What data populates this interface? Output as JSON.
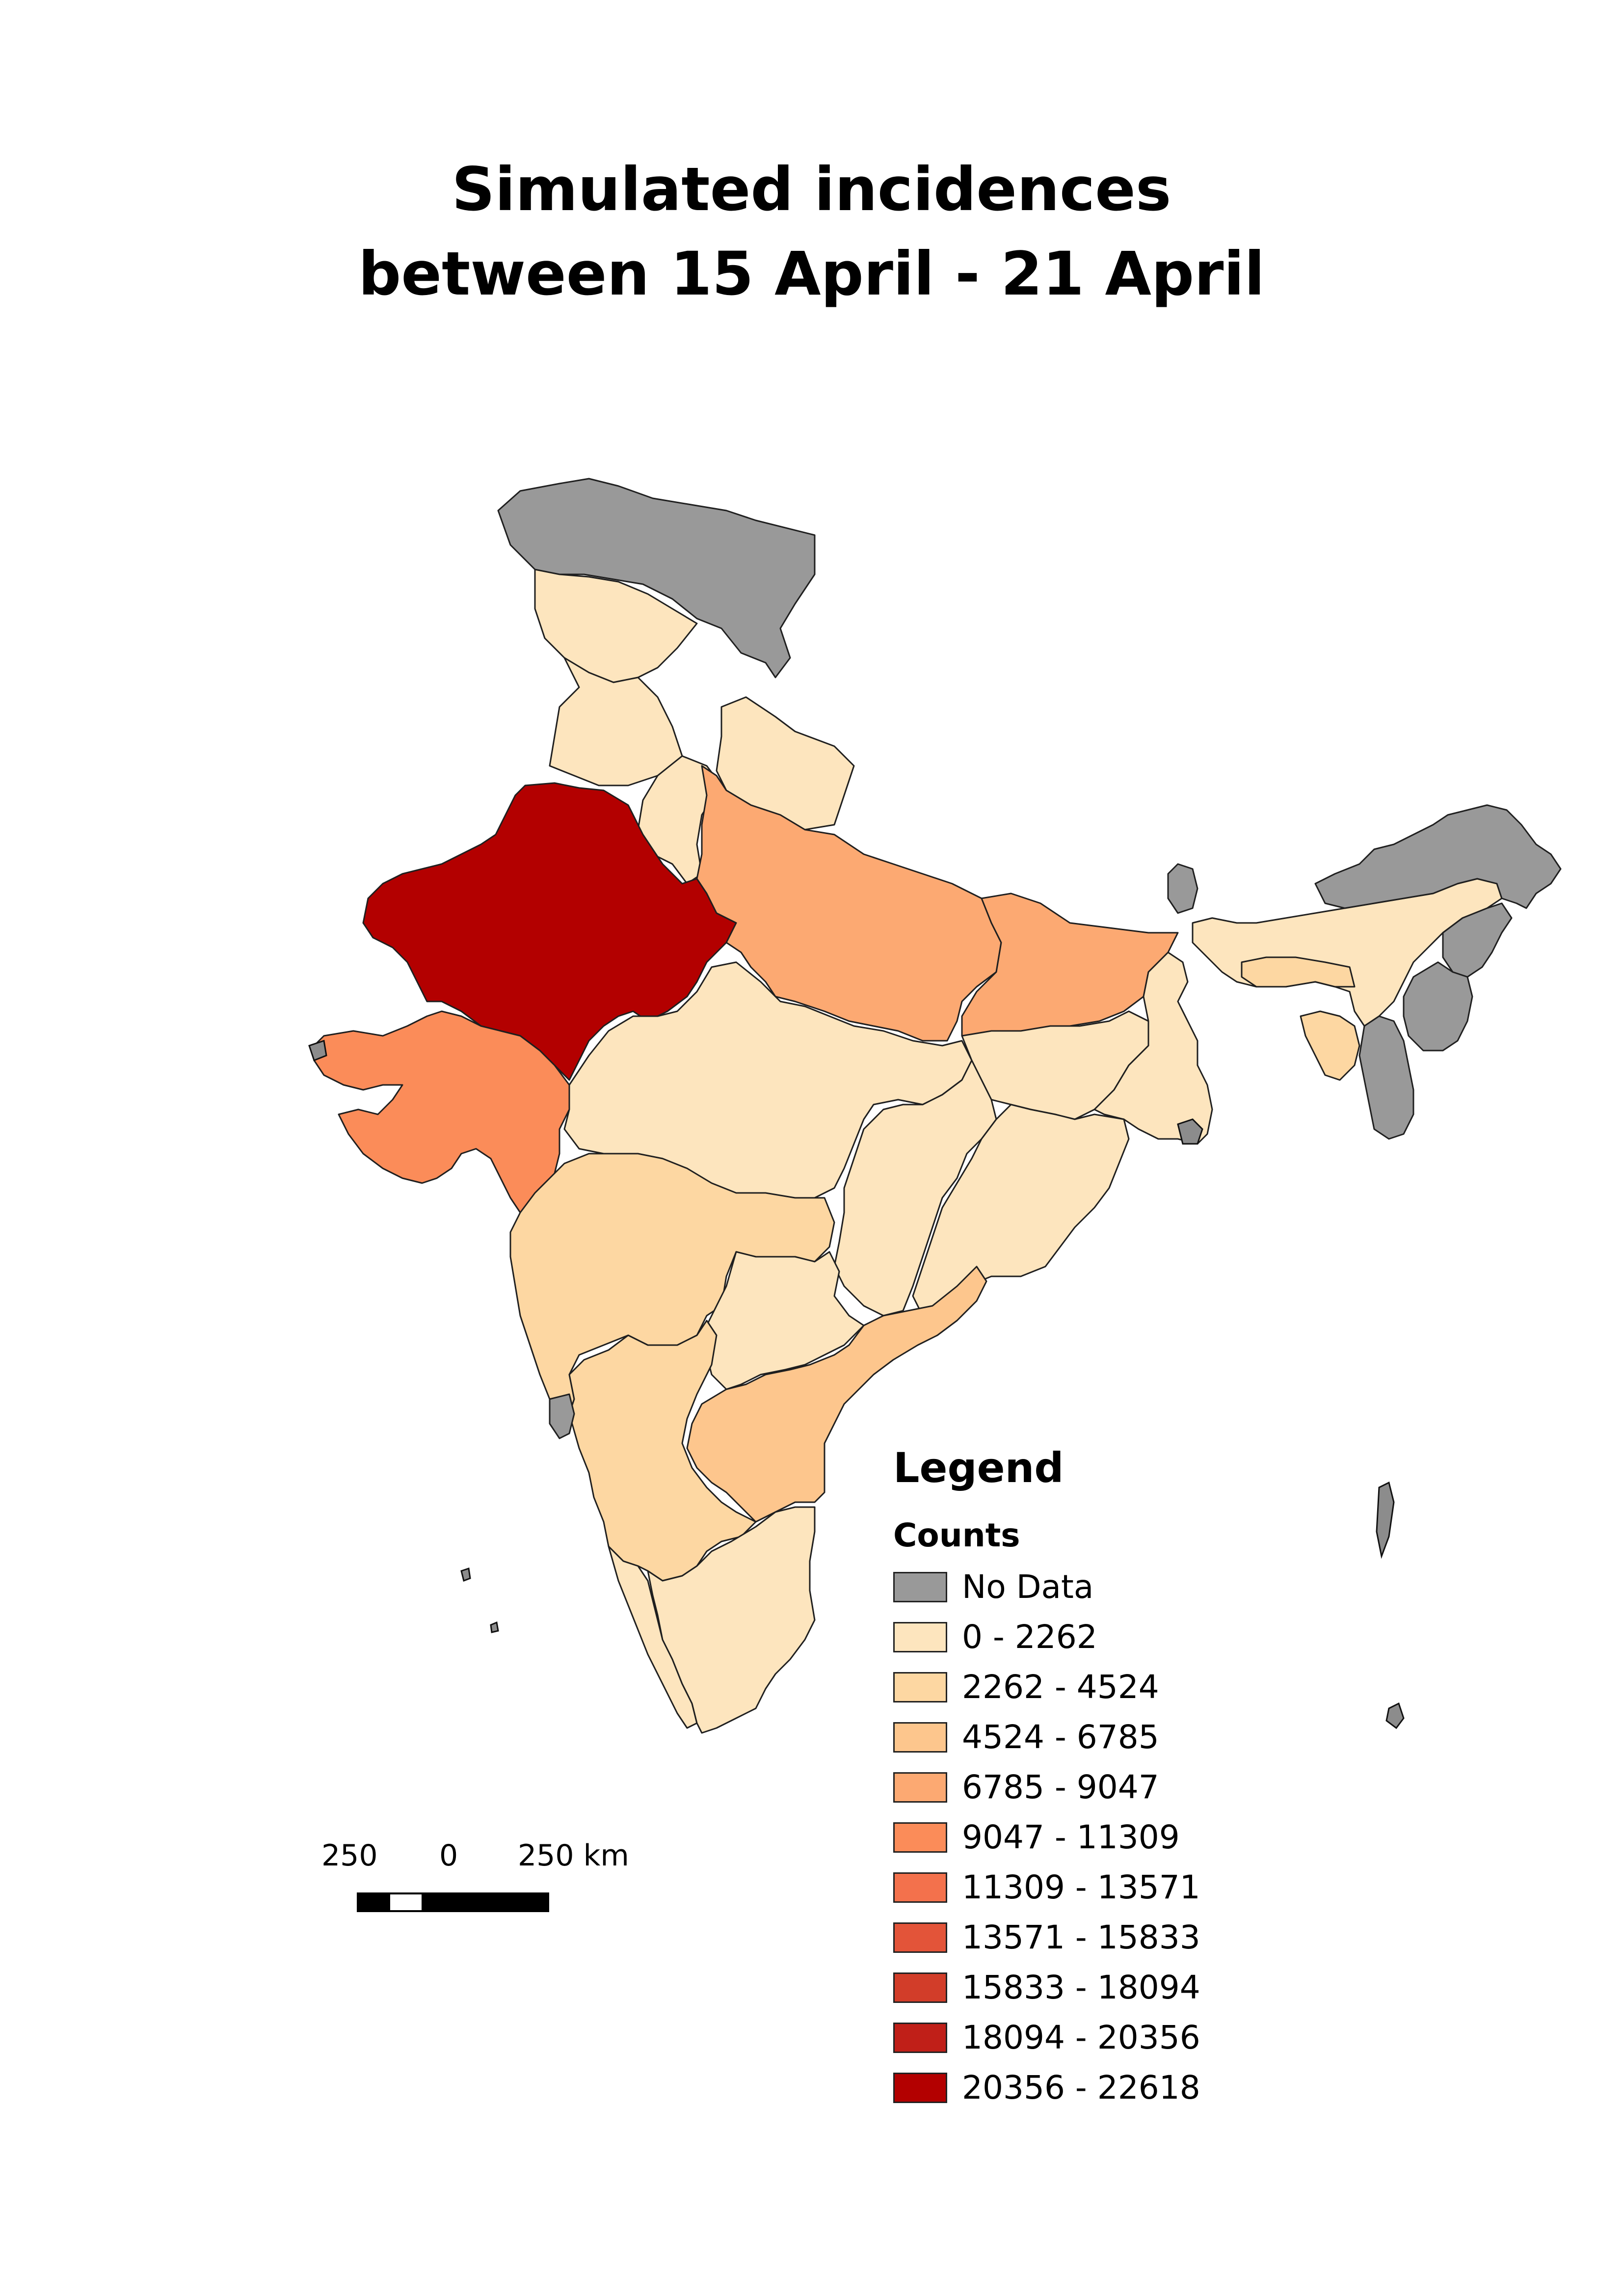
{
  "title": {
    "line1": "Simulated incidences",
    "line2": "between 15 April - 21 April"
  },
  "legend": {
    "title": "Legend",
    "subtitle": "Counts",
    "classes": [
      {
        "label": "No Data",
        "color": "#999999"
      },
      {
        "label": "0 - 2262",
        "color": "#fde5be"
      },
      {
        "label": "2262 - 4524",
        "color": "#fdd7a2"
      },
      {
        "label": "4524 - 6785",
        "color": "#fdc68d"
      },
      {
        "label": "6785 - 9047",
        "color": "#fca972"
      },
      {
        "label": "9047 - 11309",
        "color": "#fb8c59"
      },
      {
        "label": "11309 - 13571",
        "color": "#f3714c"
      },
      {
        "label": "13571 - 15833",
        "color": "#e35439"
      },
      {
        "label": "15833 - 18094",
        "color": "#d23d29"
      },
      {
        "label": "18094 - 20356",
        "color": "#c01f18"
      },
      {
        "label": "20356 - 22618",
        "color": "#b30000"
      }
    ]
  },
  "scalebar": {
    "left_label": "250",
    "mid_label": "0",
    "right_label": "250 km",
    "segment_colors": [
      "#000000",
      "#ffffff",
      "#000000",
      "#000000"
    ]
  },
  "map_regions": [
    {
      "name": "jammu-kashmir",
      "class": "No Data"
    },
    {
      "name": "himachal-pradesh",
      "class": "0 - 2262"
    },
    {
      "name": "punjab",
      "class": "0 - 2262"
    },
    {
      "name": "uttarakhand",
      "class": "0 - 2262"
    },
    {
      "name": "haryana",
      "class": "0 - 2262"
    },
    {
      "name": "rajasthan",
      "class": "20356 - 22618"
    },
    {
      "name": "uttar-pradesh",
      "class": "6785 - 9047"
    },
    {
      "name": "bihar",
      "class": "6785 - 9047"
    },
    {
      "name": "gujarat",
      "class": "9047 - 11309"
    },
    {
      "name": "madhya-pradesh",
      "class": "0 - 2262"
    },
    {
      "name": "jharkhand",
      "class": "0 - 2262"
    },
    {
      "name": "west-bengal",
      "class": "0 - 2262"
    },
    {
      "name": "chhattisgarh",
      "class": "0 - 2262"
    },
    {
      "name": "odisha",
      "class": "0 - 2262"
    },
    {
      "name": "maharashtra",
      "class": "2262 - 4524"
    },
    {
      "name": "telangana",
      "class": "0 - 2262"
    },
    {
      "name": "andhra-pradesh",
      "class": "4524 - 6785"
    },
    {
      "name": "karnataka",
      "class": "2262 - 4524"
    },
    {
      "name": "goa",
      "class": "No Data"
    },
    {
      "name": "kerala",
      "class": "0 - 2262"
    },
    {
      "name": "tamil-nadu",
      "class": "0 - 2262"
    },
    {
      "name": "sikkim",
      "class": "No Data"
    },
    {
      "name": "assam",
      "class": "0 - 2262"
    },
    {
      "name": "meghalaya",
      "class": "2262 - 4524"
    },
    {
      "name": "arunachal-pradesh",
      "class": "No Data"
    },
    {
      "name": "nagaland",
      "class": "No Data"
    },
    {
      "name": "manipur",
      "class": "No Data"
    },
    {
      "name": "mizoram",
      "class": "No Data"
    },
    {
      "name": "tripura",
      "class": "2262 - 4524"
    },
    {
      "name": "andaman-nicobar",
      "class": "No Data"
    },
    {
      "name": "lakshadweep",
      "class": "No Data"
    }
  ]
}
